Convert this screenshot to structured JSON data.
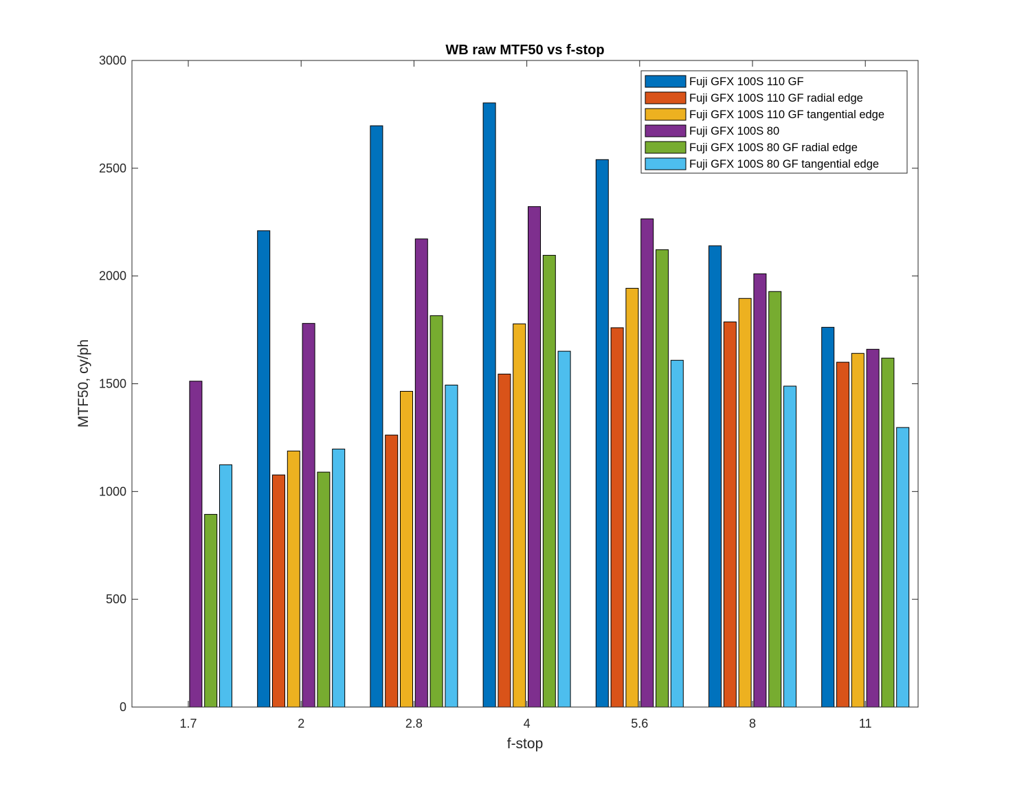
{
  "chart_data": {
    "type": "bar",
    "title": "WB raw MTF50 vs f-stop",
    "xlabel": "f-stop",
    "ylabel": "MTF50, cy/ph",
    "categories": [
      "1.7",
      "2",
      "2.8",
      "4",
      "5.6",
      "8",
      "11"
    ],
    "ylim": [
      0,
      3000
    ],
    "yticks": [
      0,
      500,
      1000,
      1500,
      2000,
      2500,
      3000
    ],
    "grid": false,
    "legend_position": "top-right",
    "series": [
      {
        "name": "Fuji GFX 100S 110 GF",
        "color": "#0072BD",
        "values": [
          null,
          2210,
          2697,
          2803,
          2540,
          2140,
          1762
        ]
      },
      {
        "name": "Fuji GFX 100S 110 GF radial edge",
        "color": "#D95319",
        "values": [
          null,
          1077,
          1262,
          1545,
          1760,
          1787,
          1600
        ]
      },
      {
        "name": "Fuji GFX 100S 110 GF tangential edge",
        "color": "#EDB120",
        "values": [
          null,
          1188,
          1465,
          1778,
          1943,
          1896,
          1641
        ]
      },
      {
        "name": "Fuji GFX 100S 80",
        "color": "#7E2F8E",
        "values": [
          1512,
          1780,
          2172,
          2322,
          2265,
          2010,
          1660
        ]
      },
      {
        "name": "Fuji GFX 100S 80 GF radial edge",
        "color": "#77AC30",
        "values": [
          894,
          1090,
          1816,
          2096,
          2122,
          1928,
          1619
        ]
      },
      {
        "name": "Fuji GFX 100S 80 GF tangential edge",
        "color": "#4DBEEE",
        "values": [
          1124,
          1197,
          1494,
          1651,
          1609,
          1489,
          1297
        ]
      }
    ]
  }
}
